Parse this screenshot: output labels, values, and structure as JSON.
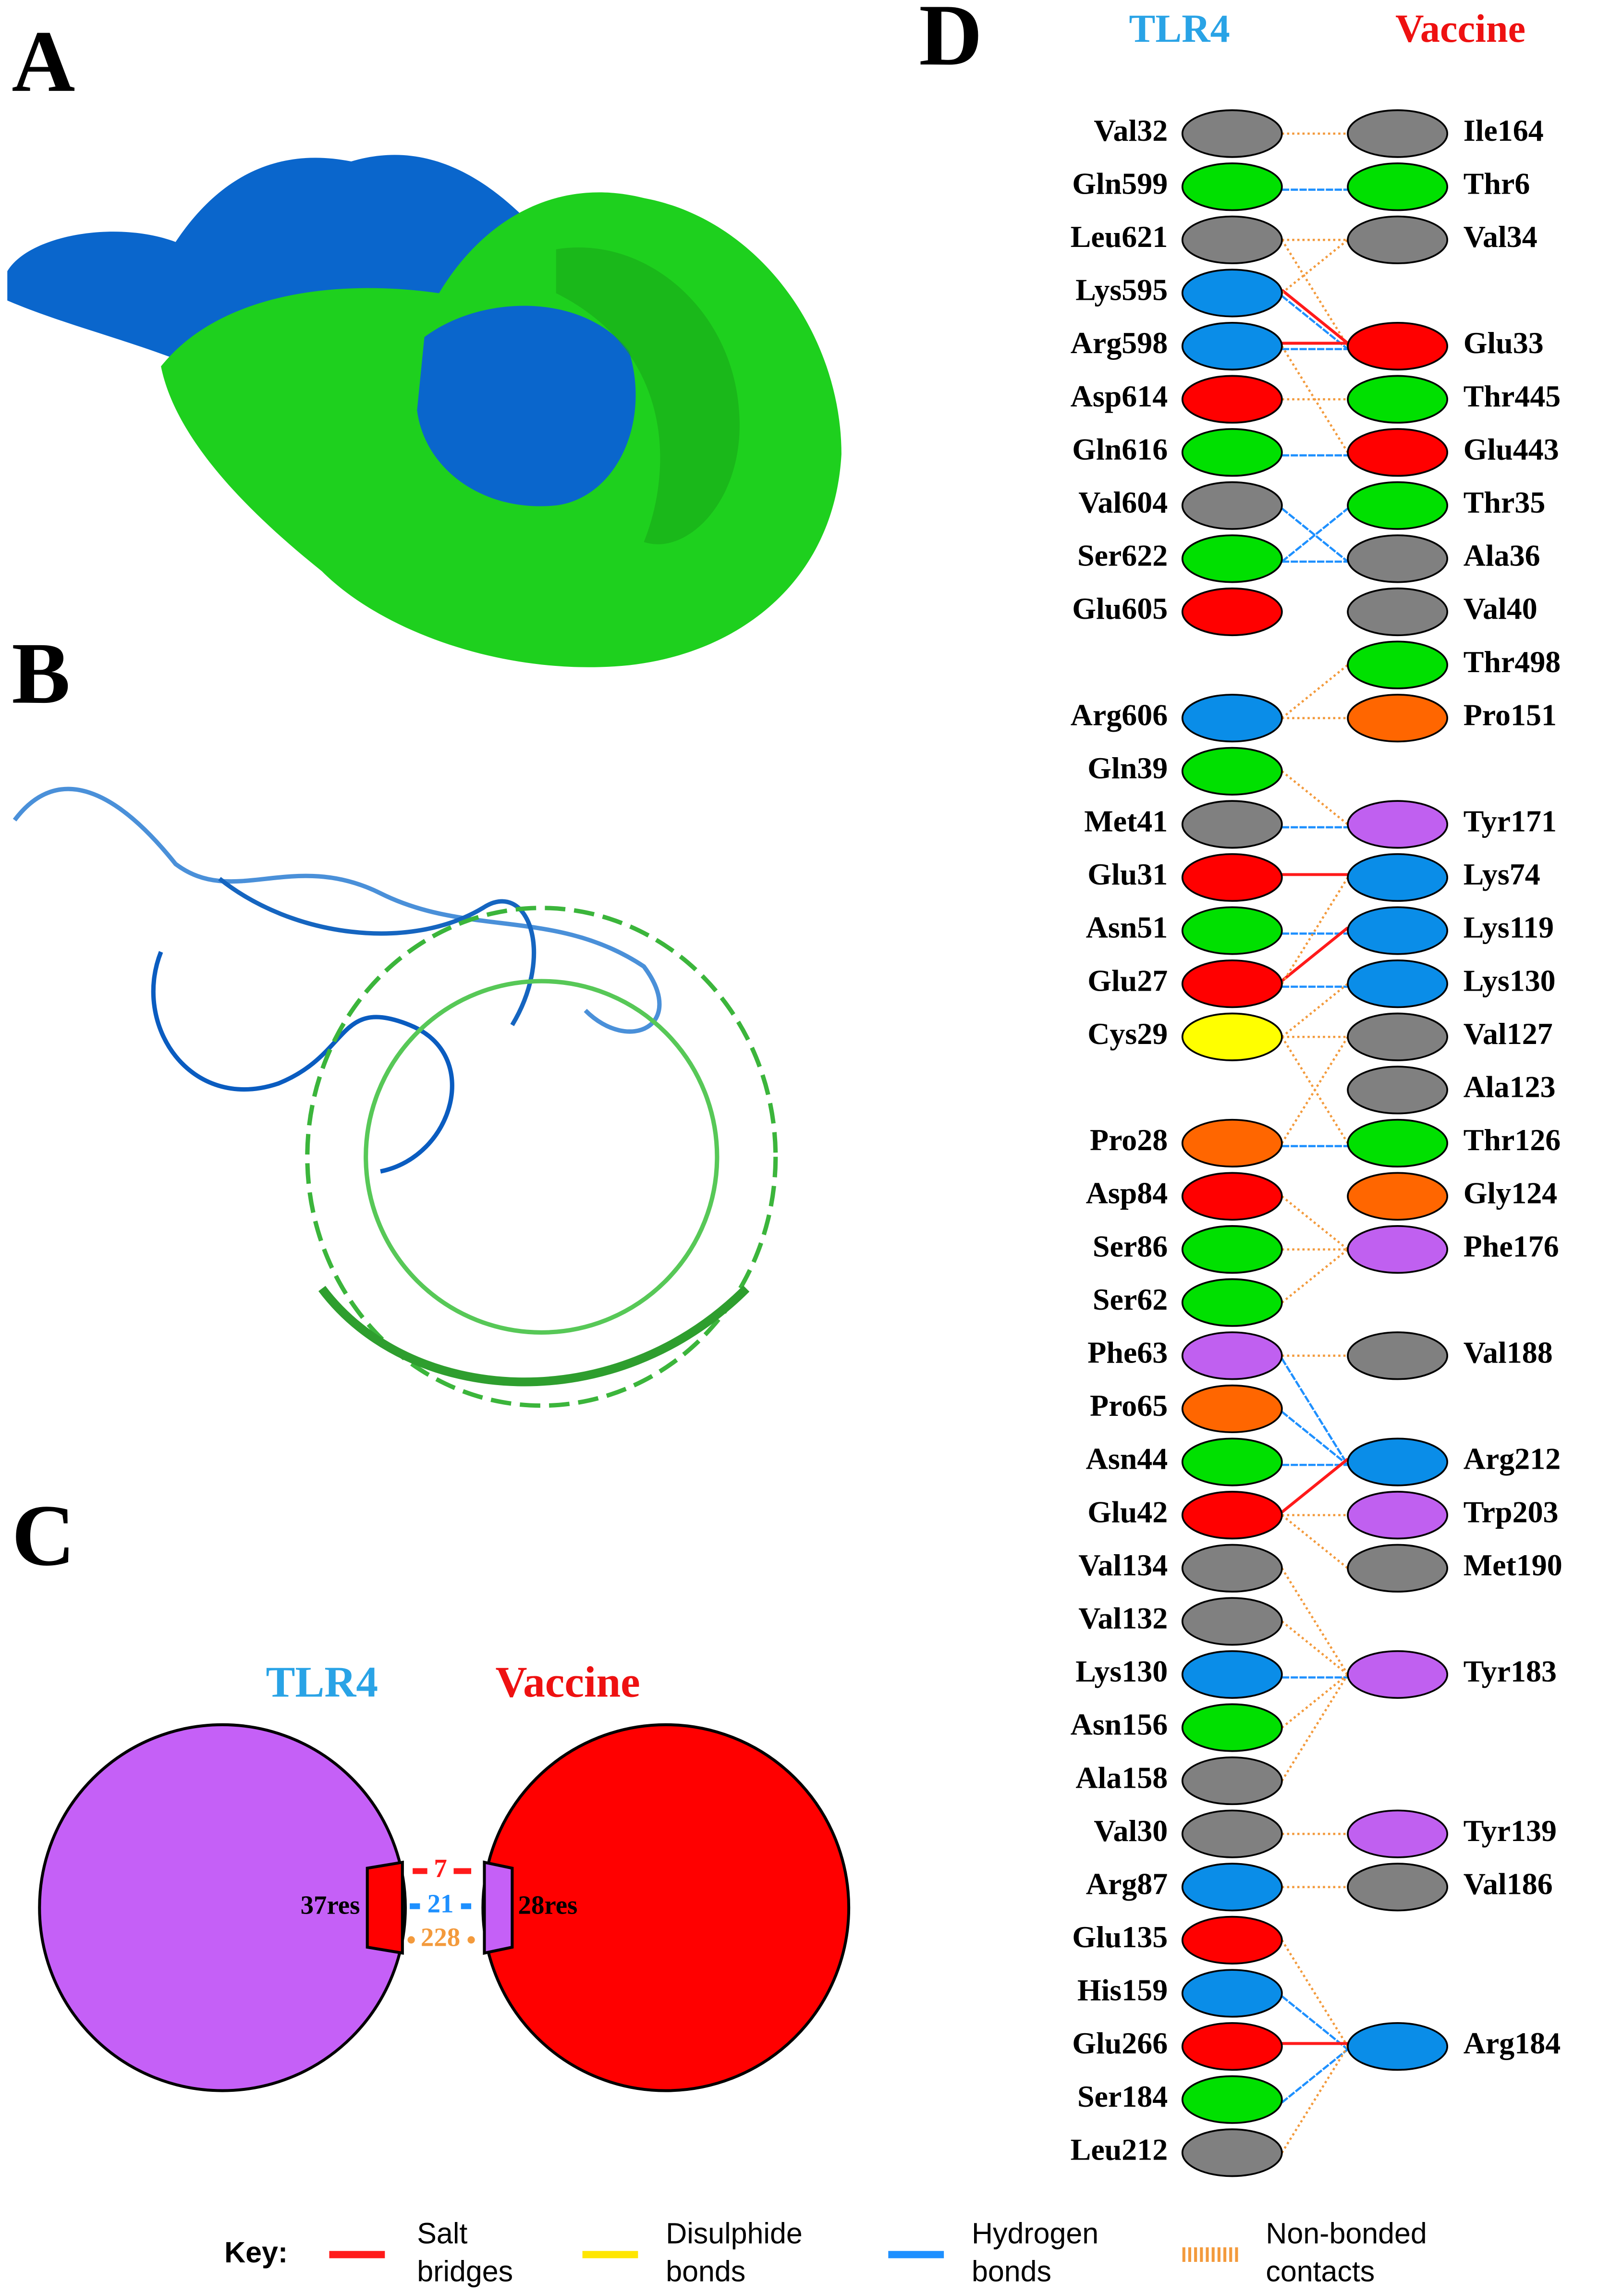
{
  "panels": {
    "a": "A",
    "b": "B",
    "c": "C",
    "d": "D"
  },
  "venn": {
    "left_title": "TLR4",
    "right_title": "Vaccine",
    "left_count": "37res",
    "right_count": "28res",
    "salt_bridges": 7,
    "hydrogen_bonds": 21,
    "non_bonded": 228
  },
  "interface": {
    "left_title": "TLR4",
    "right_title": "Vaccine",
    "rows": [
      [
        {
          "label": "Val32",
          "color": "gray"
        },
        {
          "label": "Ile164",
          "color": "gray"
        }
      ],
      [
        {
          "label": "Gln599",
          "color": "green"
        },
        {
          "label": "Thr6",
          "color": "green"
        }
      ],
      [
        {
          "label": "Leu621",
          "color": "gray"
        },
        {
          "label": "Val34",
          "color": "gray"
        }
      ],
      [
        {
          "label": "Lys595",
          "color": "blue"
        },
        null
      ],
      [
        {
          "label": "Arg598",
          "color": "blue"
        },
        {
          "label": "Glu33",
          "color": "red"
        }
      ],
      [
        {
          "label": "Asp614",
          "color": "red"
        },
        {
          "label": "Thr445",
          "color": "green"
        }
      ],
      [
        {
          "label": "Gln616",
          "color": "green"
        },
        {
          "label": "Glu443",
          "color": "red"
        }
      ],
      [
        {
          "label": "Val604",
          "color": "gray"
        },
        {
          "label": "Thr35",
          "color": "green"
        }
      ],
      [
        {
          "label": "Ser622",
          "color": "green"
        },
        {
          "label": "Ala36",
          "color": "gray"
        }
      ],
      [
        {
          "label": "Glu605",
          "color": "red"
        },
        {
          "label": "Val40",
          "color": "gray"
        }
      ],
      [
        null,
        {
          "label": "Thr498",
          "color": "green"
        }
      ],
      [
        {
          "label": "Arg606",
          "color": "blue"
        },
        {
          "label": "Pro151",
          "color": "orange"
        }
      ],
      [
        {
          "label": "Gln39",
          "color": "green"
        },
        null
      ],
      [
        {
          "label": "Met41",
          "color": "gray"
        },
        {
          "label": "Tyr171",
          "color": "purple"
        }
      ],
      [
        {
          "label": "Glu31",
          "color": "red"
        },
        {
          "label": "Lys74",
          "color": "blue"
        }
      ],
      [
        {
          "label": "Asn51",
          "color": "green"
        },
        {
          "label": "Lys119",
          "color": "blue"
        }
      ],
      [
        {
          "label": "Glu27",
          "color": "red"
        },
        {
          "label": "Lys130",
          "color": "blue"
        }
      ],
      [
        {
          "label": "Cys29",
          "color": "yellow"
        },
        {
          "label": "Val127",
          "color": "gray"
        }
      ],
      [
        null,
        {
          "label": "Ala123",
          "color": "gray"
        }
      ],
      [
        {
          "label": "Pro28",
          "color": "orange"
        },
        {
          "label": "Thr126",
          "color": "green"
        }
      ],
      [
        {
          "label": "Asp84",
          "color": "red"
        },
        {
          "label": "Gly124",
          "color": "orange"
        }
      ],
      [
        {
          "label": "Ser86",
          "color": "green"
        },
        {
          "label": "Phe176",
          "color": "purple"
        }
      ],
      [
        {
          "label": "Ser62",
          "color": "green"
        },
        null
      ],
      [
        {
          "label": "Phe63",
          "color": "purple"
        },
        {
          "label": "Val188",
          "color": "gray"
        }
      ],
      [
        {
          "label": "Pro65",
          "color": "orange"
        },
        null
      ],
      [
        {
          "label": "Asn44",
          "color": "green"
        },
        {
          "label": "Arg212",
          "color": "blue"
        }
      ],
      [
        {
          "label": "Glu42",
          "color": "red"
        },
        {
          "label": "Trp203",
          "color": "purple"
        }
      ],
      [
        {
          "label": "Val134",
          "color": "gray"
        },
        {
          "label": "Met190",
          "color": "gray"
        }
      ],
      [
        {
          "label": "Val132",
          "color": "gray"
        },
        null
      ],
      [
        {
          "label": "Lys130",
          "color": "blue"
        },
        {
          "label": "Tyr183",
          "color": "purple"
        }
      ],
      [
        {
          "label": "Asn156",
          "color": "green"
        },
        null
      ],
      [
        {
          "label": "Ala158",
          "color": "gray"
        },
        null
      ],
      [
        {
          "label": "Val30",
          "color": "gray"
        },
        {
          "label": "Tyr139",
          "color": "purple"
        }
      ],
      [
        {
          "label": "Arg87",
          "color": "blue"
        },
        {
          "label": "Val186",
          "color": "gray"
        }
      ],
      [
        {
          "label": "Glu135",
          "color": "red"
        },
        null
      ],
      [
        {
          "label": "His159",
          "color": "blue"
        },
        null
      ],
      [
        {
          "label": "Glu266",
          "color": "red"
        },
        {
          "label": "Arg184",
          "color": "blue"
        }
      ],
      [
        {
          "label": "Ser184",
          "color": "green"
        },
        null
      ],
      [
        {
          "label": "Leu212",
          "color": "gray"
        },
        null
      ]
    ],
    "edges": [
      [
        0,
        0,
        3
      ],
      [
        1,
        1,
        2
      ],
      [
        2,
        2,
        3
      ],
      [
        2,
        4,
        3
      ],
      [
        3,
        4,
        2
      ],
      [
        3,
        4,
        0
      ],
      [
        3,
        2,
        3
      ],
      [
        4,
        4,
        2
      ],
      [
        4,
        4,
        0
      ],
      [
        4,
        6,
        3
      ],
      [
        5,
        5,
        3
      ],
      [
        6,
        6,
        2
      ],
      [
        7,
        8,
        2
      ],
      [
        8,
        8,
        2
      ],
      [
        8,
        7,
        2
      ],
      [
        11,
        11,
        3
      ],
      [
        11,
        10,
        3
      ],
      [
        12,
        13,
        3
      ],
      [
        13,
        13,
        2
      ],
      [
        14,
        14,
        0
      ],
      [
        15,
        15,
        2
      ],
      [
        16,
        15,
        0
      ],
      [
        16,
        16,
        2
      ],
      [
        16,
        14,
        3
      ],
      [
        17,
        17,
        3
      ],
      [
        17,
        16,
        3
      ],
      [
        17,
        19,
        3
      ],
      [
        19,
        19,
        2
      ],
      [
        19,
        17,
        3
      ],
      [
        20,
        21,
        3
      ],
      [
        21,
        21,
        3
      ],
      [
        22,
        21,
        3
      ],
      [
        23,
        23,
        3
      ],
      [
        23,
        25,
        2
      ],
      [
        24,
        25,
        2
      ],
      [
        25,
        25,
        2
      ],
      [
        26,
        25,
        0
      ],
      [
        26,
        26,
        3
      ],
      [
        26,
        27,
        3
      ],
      [
        27,
        29,
        3
      ],
      [
        28,
        29,
        3
      ],
      [
        29,
        29,
        2
      ],
      [
        30,
        29,
        3
      ],
      [
        31,
        29,
        3
      ],
      [
        32,
        32,
        3
      ],
      [
        33,
        33,
        3
      ],
      [
        34,
        36,
        3
      ],
      [
        35,
        36,
        2
      ],
      [
        36,
        36,
        0
      ],
      [
        37,
        36,
        2
      ],
      [
        38,
        36,
        3
      ]
    ]
  },
  "key": {
    "title": "Key:",
    "items": [
      {
        "lines": [
          "Salt",
          "bridges"
        ],
        "color": "#ff1a1a"
      },
      {
        "lines": [
          "Disulphide",
          "bonds"
        ],
        "color": "#ffe600"
      },
      {
        "lines": [
          "Hydrogen",
          "bonds"
        ],
        "color": "#1e90ff"
      },
      {
        "lines": [
          "Non-bonded",
          "contacts"
        ],
        "color": "#f39a3c"
      }
    ]
  }
}
